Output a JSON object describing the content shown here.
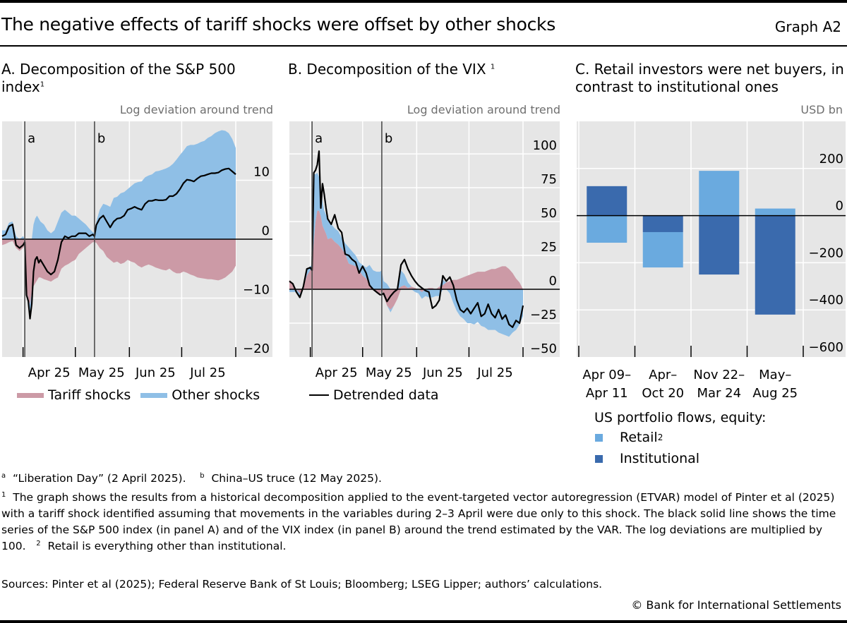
{
  "header": {
    "title": "The negative effects of tariff shocks were offset by other shocks",
    "graph_id": "Graph A2"
  },
  "colors": {
    "tariff": "#cc9aa6",
    "other": "#8fbfe6",
    "line": "#000000",
    "retail": "#6aaadf",
    "institutional": "#3a6aad",
    "plot_bg": "#e6e6e6",
    "grid": "#ffffff",
    "event_line": "#444444"
  },
  "chart_data": [
    {
      "id": "A",
      "type": "area",
      "title": "A. Decomposition of the S&P 500 index",
      "title_line1": "A. Decomposition of the S&P 500",
      "title_line2": "index",
      "title_footnote": "1",
      "ylabel": "Log deviation around trend",
      "ylim": [
        -20,
        20
      ],
      "yticks": [
        10,
        0,
        -10,
        -20
      ],
      "x_unit": "days since 20 Mar 2025",
      "xlim": [
        0,
        134
      ],
      "xticks": [
        {
          "day": 12,
          "label": ""
        },
        {
          "day": 42,
          "label": ""
        },
        {
          "day": 73,
          "label": ""
        },
        {
          "day": 103,
          "label": ""
        },
        {
          "day": 134,
          "label": ""
        }
      ],
      "xtick_labels": [
        {
          "day": 27,
          "label": "Apr 25"
        },
        {
          "day": 57,
          "label": "May 25"
        },
        {
          "day": 88,
          "label": "Jun 25"
        },
        {
          "day": 118,
          "label": "Jul 25"
        }
      ],
      "events": [
        {
          "day": 13,
          "label": "a"
        },
        {
          "day": 53,
          "label": "b"
        }
      ],
      "legend": [
        {
          "key": "tariff",
          "label": "Tariff shocks"
        },
        {
          "key": "other",
          "label": "Other shocks"
        }
      ],
      "x": [
        0,
        2,
        4,
        6,
        8,
        10,
        12,
        13,
        14,
        15,
        16,
        17,
        18,
        19,
        20,
        21,
        22,
        24,
        26,
        28,
        30,
        32,
        34,
        36,
        38,
        40,
        42,
        44,
        46,
        48,
        50,
        52,
        53,
        54,
        56,
        58,
        60,
        62,
        64,
        66,
        68,
        70,
        72,
        74,
        76,
        78,
        80,
        82,
        84,
        86,
        88,
        90,
        92,
        94,
        96,
        98,
        100,
        102,
        104,
        106,
        108,
        110,
        112,
        114,
        116,
        118,
        120,
        122,
        124,
        126,
        128,
        130,
        132,
        134
      ],
      "series": [
        {
          "name": "Tariff shocks",
          "key": "tariff",
          "values": [
            -1.0,
            -0.8,
            -0.5,
            -0.3,
            -1.5,
            -2.0,
            -1.5,
            -1.0,
            -9.0,
            -10.0,
            -11.0,
            -9.0,
            -8.0,
            -7.5,
            -7.0,
            -6.5,
            -6.5,
            -6.8,
            -7.0,
            -7.2,
            -6.8,
            -6.5,
            -5.0,
            -4.5,
            -4.2,
            -3.8,
            -3.5,
            -2.5,
            -2.0,
            -1.5,
            -1.0,
            -0.5,
            -0.5,
            -0.6,
            -1.5,
            -2.0,
            -3.0,
            -3.5,
            -4.0,
            -3.8,
            -4.2,
            -4.0,
            -3.5,
            -3.8,
            -4.0,
            -4.5,
            -4.8,
            -4.5,
            -4.3,
            -4.5,
            -4.8,
            -5.0,
            -5.2,
            -5.3,
            -5.0,
            -5.5,
            -5.8,
            -5.8,
            -5.5,
            -5.7,
            -6.0,
            -6.2,
            -6.5,
            -6.6,
            -6.7,
            -6.8,
            -6.8,
            -6.9,
            -7.0,
            -6.8,
            -6.5,
            -6.0,
            -5.5,
            -4.5
          ]
        },
        {
          "name": "Other shocks",
          "key": "other",
          "values": [
            1.5,
            1.5,
            2.8,
            3.0,
            0.5,
            0.0,
            0.5,
            0.0,
            -0.5,
            -0.5,
            -2.5,
            -0.5,
            2.5,
            3.5,
            4.0,
            3.5,
            3.0,
            2.5,
            1.5,
            1.0,
            1.5,
            3.0,
            4.5,
            5.0,
            4.5,
            4.0,
            4.0,
            3.5,
            3.0,
            2.5,
            1.8,
            1.2,
            1.0,
            3.0,
            5.0,
            6.0,
            5.8,
            5.5,
            7.0,
            7.2,
            7.8,
            8.0,
            8.5,
            9.0,
            9.5,
            9.7,
            9.8,
            10.5,
            10.8,
            11.0,
            11.5,
            11.6,
            11.8,
            12.0,
            12.3,
            12.8,
            13.5,
            14.3,
            15.0,
            15.8,
            16.0,
            16.0,
            16.2,
            16.5,
            16.7,
            17.2,
            17.5,
            18.0,
            18.3,
            18.5,
            18.4,
            18.0,
            17.0,
            15.5
          ]
        },
        {
          "name": "Detrended data",
          "key": "line",
          "values": [
            0.5,
            0.8,
            2.2,
            2.5,
            -1.0,
            -1.5,
            -1.0,
            -0.5,
            -9.5,
            -10.5,
            -13.5,
            -11.0,
            -5.5,
            -3.5,
            -3.0,
            -4.0,
            -3.5,
            -4.5,
            -5.5,
            -6.0,
            -5.5,
            -3.5,
            -0.5,
            0.5,
            0.2,
            0.5,
            0.5,
            1.0,
            1.0,
            1.0,
            0.5,
            0.8,
            0.5,
            2.4,
            3.5,
            4.0,
            3.0,
            2.0,
            3.0,
            3.5,
            3.6,
            4.0,
            5.0,
            5.2,
            5.5,
            5.2,
            5.0,
            6.0,
            6.5,
            6.5,
            6.7,
            6.6,
            6.6,
            6.7,
            7.3,
            7.3,
            7.7,
            8.5,
            9.5,
            10.1,
            10.0,
            9.8,
            10.3,
            10.7,
            10.8,
            11.0,
            11.2,
            11.2,
            11.3,
            11.7,
            11.9,
            12.0,
            11.5,
            11.0
          ]
        }
      ]
    },
    {
      "id": "B",
      "type": "area",
      "title": "B. Decomposition of the VIX",
      "title_line1": "B. Decomposition of the VIX",
      "title_footnote": "1",
      "ylabel": "Log deviation around trend",
      "ylim": [
        -50,
        124
      ],
      "yticks": [
        100,
        75,
        50,
        25,
        0,
        -25,
        -50
      ],
      "x_unit": "days since 20 Mar 2025",
      "xlim": [
        0,
        134
      ],
      "xticks": [
        {
          "day": 12,
          "label": ""
        },
        {
          "day": 42,
          "label": ""
        },
        {
          "day": 73,
          "label": ""
        },
        {
          "day": 103,
          "label": ""
        },
        {
          "day": 134,
          "label": ""
        }
      ],
      "xtick_labels": [
        {
          "day": 27,
          "label": "Apr 25"
        },
        {
          "day": 57,
          "label": "May 25"
        },
        {
          "day": 88,
          "label": "Jun 25"
        },
        {
          "day": 118,
          "label": "Jul 25"
        }
      ],
      "events": [
        {
          "day": 13,
          "label": "a"
        },
        {
          "day": 53,
          "label": "b"
        }
      ],
      "legend": [
        {
          "key": "line",
          "label": "Detrended data"
        }
      ],
      "x": [
        0,
        2,
        4,
        6,
        8,
        10,
        12,
        13,
        14,
        15,
        16,
        17,
        18,
        19,
        20,
        21,
        22,
        24,
        26,
        28,
        30,
        32,
        34,
        36,
        38,
        40,
        42,
        44,
        46,
        48,
        50,
        52,
        53,
        54,
        56,
        58,
        60,
        62,
        64,
        66,
        68,
        70,
        72,
        74,
        76,
        78,
        80,
        82,
        84,
        86,
        88,
        90,
        92,
        94,
        96,
        98,
        100,
        102,
        104,
        106,
        108,
        110,
        112,
        114,
        116,
        118,
        120,
        122,
        124,
        126,
        128,
        130,
        132,
        134
      ],
      "series": [
        {
          "name": "Tariff shocks",
          "key": "tariff",
          "values": [
            7,
            4,
            0,
            -3,
            1,
            10,
            14,
            15,
            35,
            50,
            58,
            58,
            54,
            47,
            44,
            41,
            37,
            38,
            35,
            33,
            30,
            26,
            19,
            18,
            17,
            14,
            10,
            8,
            4,
            0,
            -3,
            -4,
            0,
            -5,
            -12,
            -15,
            -12,
            -7,
            2,
            3,
            1,
            2,
            1,
            0,
            -2,
            0,
            1,
            1,
            0,
            2,
            3,
            5,
            6,
            7,
            7,
            8,
            9,
            10,
            11,
            12,
            13,
            13,
            13,
            14,
            15,
            15,
            16,
            17,
            17,
            15,
            12,
            8,
            5,
            0
          ]
        },
        {
          "name": "Other shocks",
          "key": "other",
          "values": [
            -2,
            -2,
            -2,
            -2,
            0,
            5,
            3,
            3,
            50,
            35,
            28,
            25,
            20,
            18,
            14,
            14,
            14,
            10,
            10,
            10,
            8,
            8,
            12,
            10,
            8,
            6,
            8,
            8,
            14,
            14,
            13,
            13,
            14,
            6,
            4,
            -2,
            0,
            0,
            12,
            8,
            4,
            0,
            -2,
            -3,
            -5,
            -5,
            -6,
            -6,
            -5,
            -5,
            4,
            0,
            -3,
            -10,
            -16,
            -20,
            -22,
            -25,
            -25,
            -26,
            -24,
            -27,
            -28,
            -30,
            -30,
            -30,
            -32,
            -33,
            -34,
            -35,
            -32,
            -30,
            -26,
            -20
          ]
        },
        {
          "name": "Detrended data",
          "key": "line",
          "values": [
            6,
            4,
            -2,
            -6,
            2,
            15,
            16,
            14,
            86,
            88,
            92,
            102,
            60,
            78,
            70,
            60,
            52,
            48,
            55,
            45,
            42,
            26,
            25,
            22,
            20,
            12,
            17,
            12,
            3,
            0,
            -2,
            -4,
            -4,
            -3,
            -9,
            -5,
            -2,
            0,
            18,
            22,
            15,
            10,
            6,
            3,
            1,
            -1,
            -2,
            -14,
            -12,
            -8,
            10,
            6,
            9,
            3,
            -8,
            -15,
            -17,
            -14,
            -18,
            -14,
            -10,
            -20,
            -18,
            -11,
            -18,
            -21,
            -15,
            -22,
            -19,
            -26,
            -28,
            -23,
            -25,
            -12
          ]
        }
      ]
    },
    {
      "id": "C",
      "type": "bar",
      "title": "C. Retail investors were net buyers, in contrast to institutional ones",
      "title_line1": "C. Retail investors were net buyers, in",
      "title_line2": "contrast to institutional ones",
      "ylabel": "USD bn",
      "ylim": [
        -600,
        400
      ],
      "yticks": [
        200,
        0,
        -200,
        -400,
        -600
      ],
      "categories": [
        [
          "Apr 09–",
          "Apr 11"
        ],
        [
          "Apr–",
          "Oct 20"
        ],
        [
          "Nov 22–",
          "Mar 24"
        ],
        [
          "May–",
          "Aug 25"
        ]
      ],
      "series": [
        {
          "name": "Retail",
          "key": "retail",
          "footnote": "2",
          "values": [
            -115,
            -150,
            190,
            30
          ]
        },
        {
          "name": "Institutional",
          "key": "institutional",
          "values": [
            125,
            -70,
            -250,
            -420
          ]
        }
      ],
      "legend_title": "US portfolio flows, equity:"
    }
  ],
  "notes": {
    "events_line": [
      {
        "mark": "a",
        "text": "“Liberation Day” (2 April 2025)."
      },
      {
        "mark": "b",
        "text": "China–US truce (12 May 2025)."
      }
    ],
    "footnote1": "The graph shows the results from a historical decomposition applied to the event-targeted vector autoregression (ETVAR) model of Pinter et al (2025) with a tariff shock identified assuming that movements in the variables during 2–3 April were due only to this shock. The black solid line shows the time series of the S&P 500 index (in panel A) and of the VIX index (in panel B) around the trend estimated by the VAR. The log deviations are multiplied by 100.",
    "footnote1_mark": "1",
    "footnote2_mark": "2",
    "footnote2": "Retail is everything other than institutional.",
    "sources": "Sources: Pinter et al (2025); Federal Reserve Bank of St Louis; Bloomberg; LSEG Lipper; authors’ calculations.",
    "copyright": "© Bank for International Settlements"
  }
}
